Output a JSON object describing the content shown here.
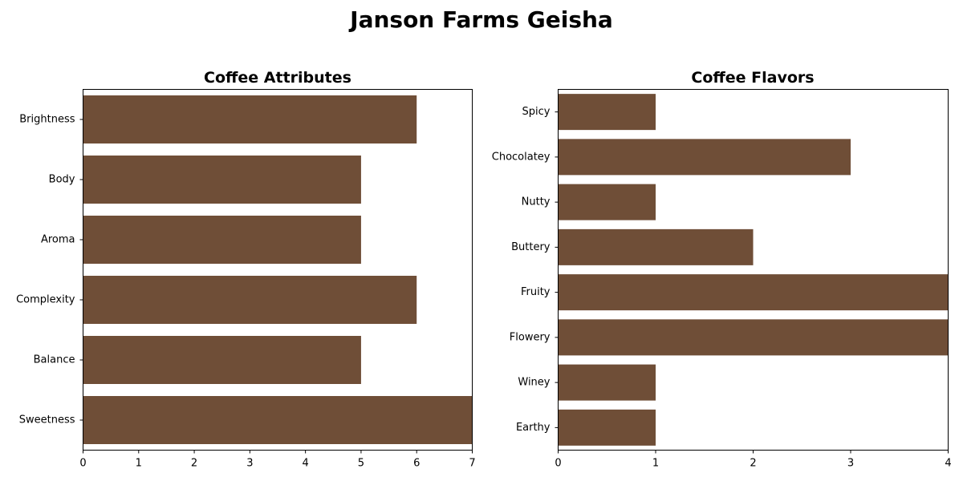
{
  "figure": {
    "title": "Janson Farms Geisha"
  },
  "chart_data": [
    {
      "type": "bar",
      "orientation": "horizontal",
      "title": "Coffee Attributes",
      "categories": [
        "Brightness",
        "Body",
        "Aroma",
        "Complexity",
        "Balance",
        "Sweetness"
      ],
      "values": [
        6,
        5,
        5,
        6,
        5,
        7
      ],
      "xlim": [
        0,
        7
      ],
      "xticks": [
        "0",
        "1",
        "2",
        "3",
        "4",
        "5",
        "6",
        "7"
      ],
      "xlabel": "",
      "ylabel": "",
      "color": "#6f4e37",
      "grid": false
    },
    {
      "type": "bar",
      "orientation": "horizontal",
      "title": "Coffee Flavors",
      "categories": [
        "Spicy",
        "Chocolatey",
        "Nutty",
        "Buttery",
        "Fruity",
        "Flowery",
        "Winey",
        "Earthy"
      ],
      "values": [
        1,
        3,
        1,
        2,
        4,
        4,
        1,
        1
      ],
      "xlim": [
        0,
        4
      ],
      "xticks": [
        "0",
        "1",
        "2",
        "3",
        "4"
      ],
      "xlabel": "",
      "ylabel": "",
      "color": "#6f4e37",
      "grid": false
    }
  ]
}
